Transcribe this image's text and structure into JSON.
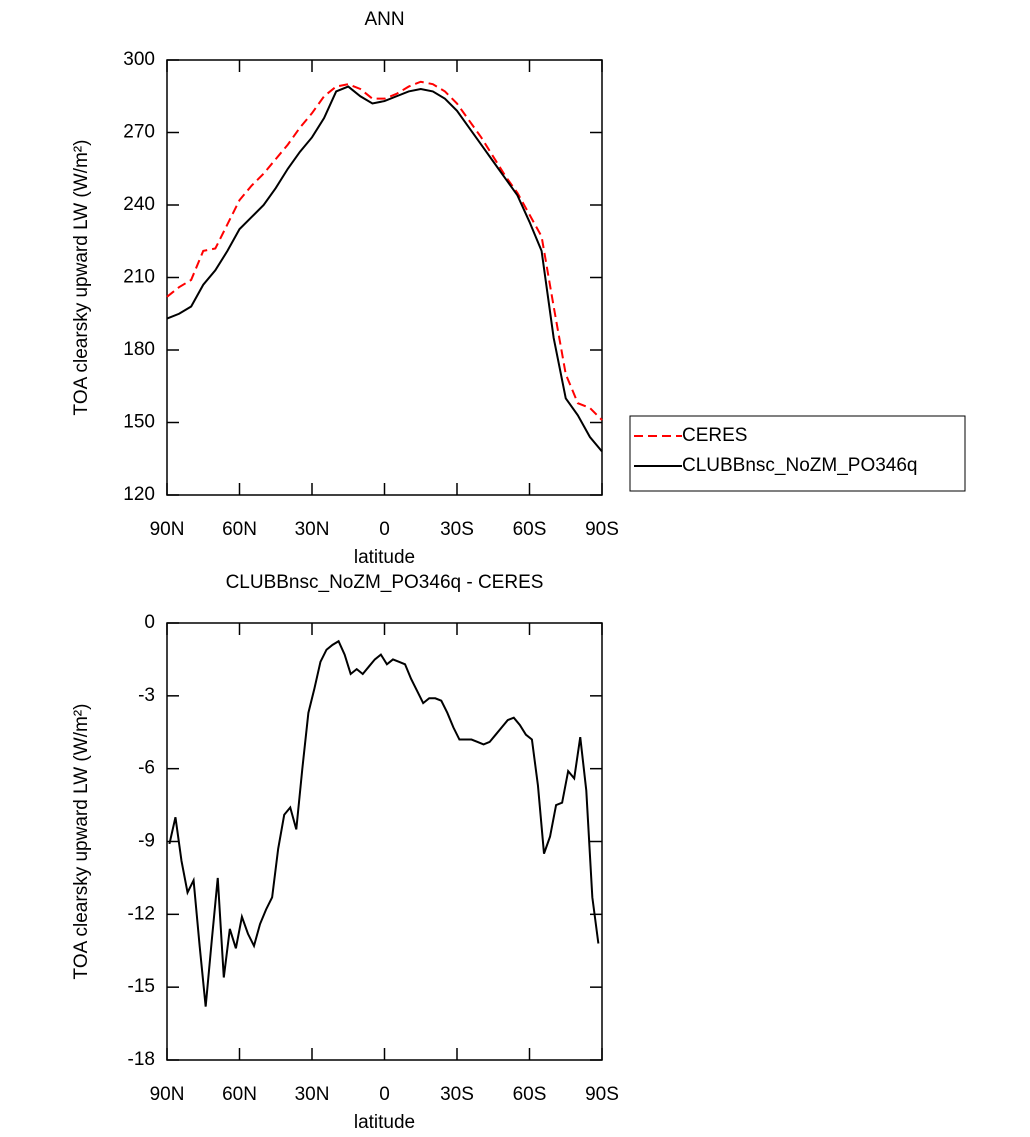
{
  "chart_data": [
    {
      "type": "line",
      "title": "ANN",
      "xlabel": "latitude",
      "ylabel": "TOA clearsky upward LW (W/m²)",
      "x": [
        90,
        85,
        80,
        75,
        70,
        65,
        60,
        55,
        50,
        45,
        40,
        35,
        30,
        25,
        20,
        15,
        10,
        5,
        0,
        -5,
        -10,
        -15,
        -20,
        -25,
        -30,
        -35,
        -40,
        -45,
        -50,
        -55,
        -60,
        -65,
        -70,
        -75,
        -80,
        -85,
        -90
      ],
      "series": [
        {
          "name": "CERES",
          "color": "#ff0000",
          "line_style": "dashed",
          "values": [
            202,
            206,
            209,
            221,
            222,
            232,
            242,
            248,
            253,
            259,
            265,
            272,
            278,
            285,
            289,
            290,
            288,
            284,
            284,
            286,
            289,
            291,
            290,
            287,
            282,
            275,
            268,
            260,
            252,
            245,
            236,
            227,
            198,
            170,
            158,
            156,
            151
          ]
        },
        {
          "name": "CLUBBnsc_NoZM_PO346q",
          "color": "#000000",
          "line_style": "solid",
          "values": [
            193,
            195,
            198,
            207,
            213,
            221,
            230,
            235,
            240,
            247,
            255,
            262,
            268,
            276,
            287,
            289,
            285,
            282,
            283,
            285,
            287,
            288,
            287,
            284,
            279,
            272,
            265,
            258,
            251,
            244,
            233,
            221,
            185,
            160,
            153,
            144,
            138
          ]
        }
      ],
      "xlim": [
        90,
        -90
      ],
      "xticks": [
        {
          "value": 90,
          "label": "90N"
        },
        {
          "value": 60,
          "label": "60N"
        },
        {
          "value": 30,
          "label": "30N"
        },
        0,
        {
          "value": -30,
          "label": "30S"
        },
        {
          "value": -60,
          "label": "60S"
        },
        {
          "value": -90,
          "label": "90S"
        }
      ],
      "ylim": [
        120,
        300
      ],
      "yticks": [
        120,
        150,
        180,
        210,
        240,
        270,
        300
      ],
      "legend": "right"
    },
    {
      "type": "line",
      "title": "CLUBBnsc_NoZM_PO346q - CERES",
      "xlabel": "latitude",
      "ylabel": "TOA clearsky upward LW (W/m²)",
      "x": [
        89,
        86.5,
        84,
        81.5,
        79,
        76.5,
        74,
        71.5,
        69,
        66.5,
        64,
        61.5,
        59,
        56.5,
        54,
        51.5,
        49,
        46.5,
        44,
        41.5,
        39,
        36.5,
        34,
        31.5,
        29,
        26.5,
        24,
        21.5,
        19,
        16.5,
        14,
        11.5,
        9,
        6.5,
        4,
        1.5,
        -1,
        -3.5,
        -6,
        -8.5,
        -11,
        -13.5,
        -16,
        -18.5,
        -21,
        -23.5,
        -26,
        -28.5,
        -31,
        -33.5,
        -36,
        -38.5,
        -41,
        -43.5,
        -46,
        -48.5,
        -51,
        -53.5,
        -56,
        -58.5,
        -61,
        -63.5,
        -66,
        -68.5,
        -71,
        -73.5,
        -76,
        -78.5,
        -81,
        -83.5,
        -86,
        -88.5
      ],
      "series": [
        {
          "color": "#000000",
          "line_style": "solid",
          "values": [
            -9.1,
            -8.0,
            -9.8,
            -11.1,
            -10.6,
            -13.3,
            -15.8,
            -13.1,
            -10.5,
            -14.6,
            -12.6,
            -13.4,
            -12.1,
            -12.8,
            -13.3,
            -12.4,
            -11.8,
            -11.3,
            -9.3,
            -7.9,
            -7.6,
            -8.5,
            -6.0,
            -3.7,
            -2.7,
            -1.6,
            -1.1,
            -0.9,
            -0.75,
            -1.3,
            -2.1,
            -1.9,
            -2.1,
            -1.8,
            -1.5,
            -1.3,
            -1.7,
            -1.5,
            -1.6,
            -1.7,
            -2.3,
            -2.8,
            -3.3,
            -3.1,
            -3.1,
            -3.2,
            -3.7,
            -4.3,
            -4.8,
            -4.8,
            -4.8,
            -4.9,
            -5.0,
            -4.9,
            -4.6,
            -4.3,
            -4.0,
            -3.9,
            -4.2,
            -4.6,
            -4.8,
            -6.7,
            -9.5,
            -8.8,
            -7.5,
            -7.4,
            -6.1,
            -6.4,
            -4.7,
            -6.9,
            -11.3,
            -13.2
          ]
        }
      ],
      "xlim": [
        90,
        -90
      ],
      "xticks": [
        {
          "value": 90,
          "label": "90N"
        },
        {
          "value": 60,
          "label": "60N"
        },
        {
          "value": 30,
          "label": "30N"
        },
        0,
        {
          "value": -30,
          "label": "30S"
        },
        {
          "value": -60,
          "label": "60S"
        },
        {
          "value": -90,
          "label": "90S"
        }
      ],
      "ylim": [
        -18,
        0
      ],
      "yticks": [
        -18,
        -15,
        -12,
        -9,
        -6,
        -3,
        0
      ]
    }
  ]
}
